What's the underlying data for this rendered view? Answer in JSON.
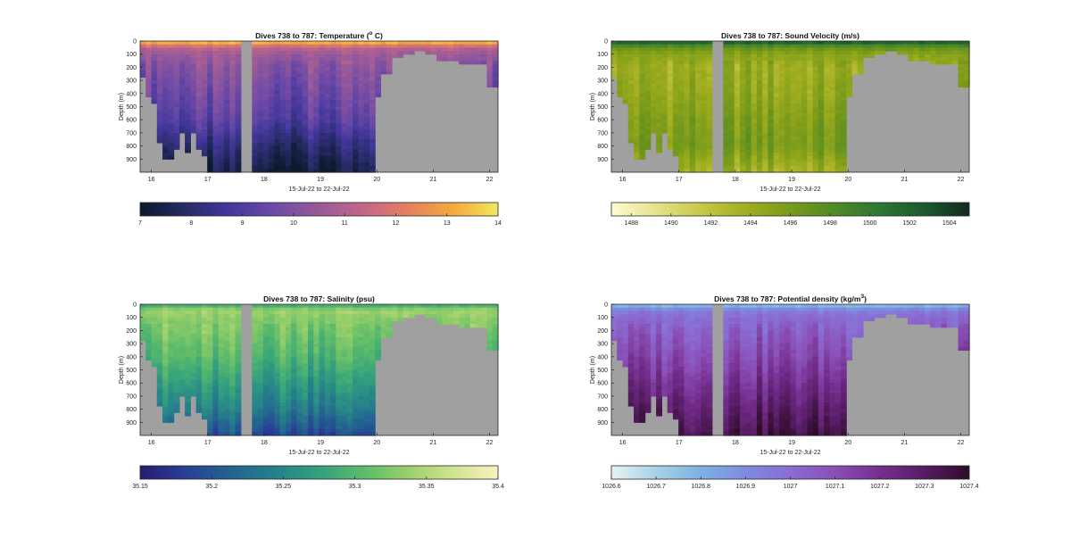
{
  "figure": {
    "panels": [
      {
        "id": "temperature",
        "title": "Dives 738 to 787: Temperature (",
        "title_sup": "o",
        "title_tail": " C)",
        "ylabel": "Depth (m)",
        "xlabel": "15-Jul-22 to 22-Jul-22",
        "x_ticks": [
          "16",
          "17",
          "18",
          "19",
          "20",
          "21",
          "22"
        ],
        "y_ticks": [
          "0",
          "100",
          "200",
          "300",
          "400",
          "500",
          "600",
          "700",
          "800",
          "900"
        ],
        "colorbar_ticks": [
          "7",
          "8",
          "9",
          "10",
          "11",
          "12",
          "13",
          "14"
        ],
        "colormap": [
          "#0b1a2c",
          "#262b66",
          "#43379c",
          "#6e4aa6",
          "#985a99",
          "#c4668a",
          "#e78060",
          "#f4a83d",
          "#f2e95c"
        ]
      },
      {
        "id": "sound-velocity",
        "title": "Dives 738 to 787: Sound Velocity (m/s)",
        "title_sup": "",
        "title_tail": "",
        "ylabel": "Depth (m)",
        "xlabel": "15-Jul-22 to 22-Jul-22",
        "x_ticks": [
          "16",
          "17",
          "18",
          "19",
          "20",
          "21",
          "22"
        ],
        "y_ticks": [
          "0",
          "100",
          "200",
          "300",
          "400",
          "500",
          "600",
          "700",
          "800",
          "900"
        ],
        "colorbar_ticks": [
          "1488",
          "1490",
          "1492",
          "1494",
          "1496",
          "1498",
          "1500",
          "1502",
          "1504"
        ],
        "colormap": [
          "#fefbd2",
          "#e6e28c",
          "#c7c848",
          "#a1ae1f",
          "#789a1a",
          "#4f8a24",
          "#2c7734",
          "#1b5a2e",
          "#122b1c"
        ]
      },
      {
        "id": "salinity",
        "title": "Dives 738 to 787: Salinity (psu)",
        "title_sup": "",
        "title_tail": "",
        "ylabel": "Depth (m)",
        "xlabel": "15-Jul-22 to 22-Jul-22",
        "x_ticks": [
          "16",
          "17",
          "18",
          "19",
          "20",
          "21",
          "22"
        ],
        "y_ticks": [
          "0",
          "100",
          "200",
          "300",
          "400",
          "500",
          "600",
          "700",
          "800",
          "900"
        ],
        "colorbar_ticks": [
          "35.15",
          "35.2",
          "35.25",
          "35.3",
          "35.35",
          "35.4"
        ],
        "colormap": [
          "#2a1b70",
          "#283f96",
          "#236290",
          "#26808a",
          "#33a07e",
          "#5cbb6a",
          "#9bd06a",
          "#d2e391",
          "#f8f2c0"
        ]
      },
      {
        "id": "density",
        "title": "Dives 738 to 787: Potential density (kg/m",
        "title_sup": "3",
        "title_tail": ")",
        "ylabel": "Depth (m)",
        "xlabel": "15-Jul-22 to 22-Jul-22",
        "x_ticks": [
          "16",
          "17",
          "18",
          "19",
          "20",
          "21",
          "22"
        ],
        "y_ticks": [
          "0",
          "100",
          "200",
          "300",
          "400",
          "500",
          "600",
          "700",
          "800",
          "900"
        ],
        "colorbar_ticks": [
          "1026.6",
          "1026.7",
          "1026.8",
          "1026.9",
          "1027",
          "1027.1",
          "1027.2",
          "1027.3",
          "1027.4"
        ],
        "colormap": [
          "#e7f2f2",
          "#a8d2e6",
          "#7fb0e3",
          "#7d8ce0",
          "#8a6cd2",
          "#8a4fb6",
          "#752e8e",
          "#561c63",
          "#2e0c27"
        ]
      }
    ]
  },
  "chart_data": [
    {
      "type": "heatmap",
      "title": "Dives 738 to 787: Temperature (o C)",
      "xlabel": "15-Jul-22 to 22-Jul-22",
      "ylabel": "Depth (m)",
      "xlim": [
        15.8,
        22.15
      ],
      "ylim": [
        0,
        1000
      ],
      "y_reversed": true,
      "colorbar": {
        "label": "Temperature (o C)",
        "range": [
          7,
          14
        ],
        "ticks": [
          7,
          8,
          9,
          10,
          11,
          12,
          13,
          14
        ]
      },
      "profile": {
        "depth": [
          0,
          20,
          50,
          100,
          200,
          400,
          600,
          800,
          1000
        ],
        "value": [
          13.8,
          12.8,
          11.2,
          10.6,
          10.1,
          9.6,
          9.1,
          8.0,
          7.2
        ]
      }
    },
    {
      "type": "heatmap",
      "title": "Dives 738 to 787: Sound Velocity (m/s)",
      "xlabel": "15-Jul-22 to 22-Jul-22",
      "ylabel": "Depth (m)",
      "xlim": [
        15.8,
        22.15
      ],
      "ylim": [
        0,
        1000
      ],
      "y_reversed": true,
      "colorbar": {
        "label": "Sound Velocity (m/s)",
        "range": [
          1487,
          1505
        ],
        "ticks": [
          1488,
          1490,
          1492,
          1494,
          1496,
          1498,
          1500,
          1502,
          1504
        ]
      },
      "profile": {
        "depth": [
          0,
          20,
          50,
          100,
          200,
          400,
          600,
          800,
          1000
        ],
        "value": [
          1504.0,
          1500.5,
          1497.0,
          1495.0,
          1494.0,
          1494.5,
          1495.5,
          1496.0,
          1493.5
        ]
      }
    },
    {
      "type": "heatmap",
      "title": "Dives 738 to 787: Salinity (psu)",
      "xlabel": "15-Jul-22 to 22-Jul-22",
      "ylabel": "Depth (m)",
      "xlim": [
        15.8,
        22.15
      ],
      "ylim": [
        0,
        1000
      ],
      "y_reversed": true,
      "colorbar": {
        "label": "Salinity (psu)",
        "range": [
          35.15,
          35.4
        ],
        "ticks": [
          35.15,
          35.2,
          35.25,
          35.3,
          35.35,
          35.4
        ]
      },
      "profile": {
        "depth": [
          0,
          20,
          50,
          100,
          200,
          400,
          600,
          800,
          1000
        ],
        "value": [
          35.27,
          35.31,
          35.34,
          35.33,
          35.32,
          35.3,
          35.27,
          35.24,
          35.19
        ]
      }
    },
    {
      "type": "heatmap",
      "title": "Dives 738 to 787: Potential density (kg/m3)",
      "xlabel": "15-Jul-22 to 22-Jul-22",
      "ylabel": "Depth (m)",
      "xlim": [
        15.8,
        22.15
      ],
      "ylim": [
        0,
        1000
      ],
      "y_reversed": true,
      "colorbar": {
        "label": "Potential density (kg/m3)",
        "range": [
          1026.6,
          1027.4
        ],
        "ticks": [
          1026.6,
          1026.7,
          1026.8,
          1026.9,
          1027.0,
          1027.1,
          1027.2,
          1027.3,
          1027.4
        ]
      },
      "profile": {
        "depth": [
          0,
          20,
          50,
          100,
          200,
          400,
          600,
          800,
          1000
        ],
        "value": [
          1026.7,
          1026.85,
          1026.95,
          1027.0,
          1027.05,
          1027.12,
          1027.2,
          1027.28,
          1027.35
        ]
      }
    }
  ],
  "seafloor": {
    "time": [
      15.8,
      15.9,
      16.0,
      16.1,
      16.2,
      16.3,
      16.4,
      16.5,
      16.6,
      16.7,
      16.8,
      16.9,
      17.0,
      17.5,
      17.8,
      18.5,
      19.0,
      19.5,
      19.7,
      19.9,
      20.0,
      20.1,
      20.3,
      20.5,
      20.7,
      20.9,
      21.1,
      21.3,
      21.5,
      21.7,
      21.9,
      22.0,
      22.15
    ],
    "depth": [
      270,
      420,
      480,
      780,
      900,
      900,
      820,
      700,
      850,
      710,
      820,
      870,
      1000,
      1000,
      1000,
      1000,
      1000,
      1000,
      1000,
      1000,
      420,
      240,
      130,
      110,
      80,
      100,
      140,
      160,
      175,
      175,
      185,
      350,
      370
    ]
  },
  "gap": {
    "time": [
      17.6,
      17.75
    ]
  }
}
